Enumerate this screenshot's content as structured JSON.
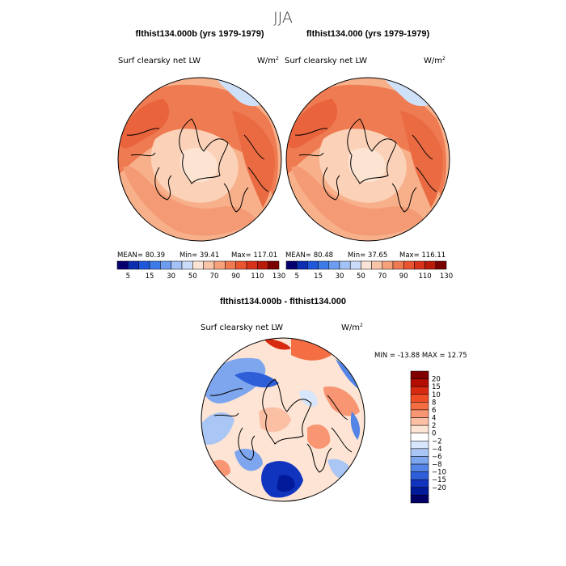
{
  "figure": {
    "season": "JJA",
    "var_label": "Surf clearsky net LW",
    "units_base": "W/m",
    "units_exp": "2"
  },
  "chart_data": [
    {
      "type": "heatmap",
      "projection": "polar-stereographic-north",
      "title": "flthist134.000b (yrs 1979-1979)",
      "variable": "Surf clearsky net LW",
      "stats": {
        "mean_text": "MEAN=  80.39",
        "min_text": "Min=  39.41",
        "max_text": "Max= 117.01",
        "mean": 80.39,
        "min": 39.41,
        "max": 117.01
      },
      "colorbar": {
        "orientation": "horizontal",
        "levels": [
          5,
          15,
          30,
          50,
          70,
          90,
          110,
          130
        ],
        "tick_labels": [
          "5",
          "15",
          "30",
          "50",
          "70",
          "90",
          "110",
          "130"
        ],
        "colors": [
          "#08006e",
          "#0b2fb0",
          "#1f57db",
          "#3f7be8",
          "#6e9cf0",
          "#a3c2f6",
          "#cadcf9",
          "#fbe4d6",
          "#f8c4a8",
          "#f5a17c",
          "#ef7a52",
          "#e85530",
          "#d8331a",
          "#b91a0a",
          "#7a0000"
        ]
      }
    },
    {
      "type": "heatmap",
      "projection": "polar-stereographic-north",
      "title": "flthist134.000 (yrs 1979-1979)",
      "variable": "Surf clearsky net LW",
      "stats": {
        "mean_text": "MEAN=  80.48",
        "min_text": "Min=  37.65",
        "max_text": "Max= 116.11",
        "mean": 80.48,
        "min": 37.65,
        "max": 116.11
      },
      "colorbar": {
        "orientation": "horizontal",
        "levels": [
          5,
          15,
          30,
          50,
          70,
          90,
          110,
          130
        ],
        "tick_labels": [
          "5",
          "15",
          "30",
          "50",
          "70",
          "90",
          "110",
          "130"
        ],
        "colors": [
          "#08006e",
          "#0b2fb0",
          "#1f57db",
          "#3f7be8",
          "#6e9cf0",
          "#a3c2f6",
          "#cadcf9",
          "#fbe4d6",
          "#f8c4a8",
          "#f5a17c",
          "#ef7a52",
          "#e85530",
          "#d8331a",
          "#b91a0a",
          "#7a0000"
        ]
      }
    },
    {
      "type": "heatmap",
      "projection": "polar-stereographic-north",
      "title": "flthist134.000b - flthist134.000",
      "variable": "Surf clearsky net LW",
      "stats": {
        "minmax_text": "MIN = -13.88 MAX =  12.75",
        "min": -13.88,
        "max": 12.75
      },
      "colorbar": {
        "orientation": "vertical",
        "levels": [
          20,
          15,
          10,
          8,
          6,
          4,
          2,
          0,
          -2,
          -4,
          -6,
          -8,
          -10,
          -15,
          -20
        ],
        "tick_labels": [
          "20",
          "15",
          "10",
          "8",
          "6",
          "4",
          "2",
          "0",
          "−2",
          "−4",
          "−6",
          "−8",
          "−10",
          "−15",
          "−20"
        ],
        "colors": [
          "#800000",
          "#b30c00",
          "#d82a10",
          "#ee4d26",
          "#f46d43",
          "#f89572",
          "#fbbfa3",
          "#fde4d4",
          "#ffffff",
          "#d7e6fb",
          "#a9c6f5",
          "#7ea6ee",
          "#5384e6",
          "#2e5fd9",
          "#1134bf",
          "#001a99",
          "#000066"
        ]
      }
    }
  ]
}
